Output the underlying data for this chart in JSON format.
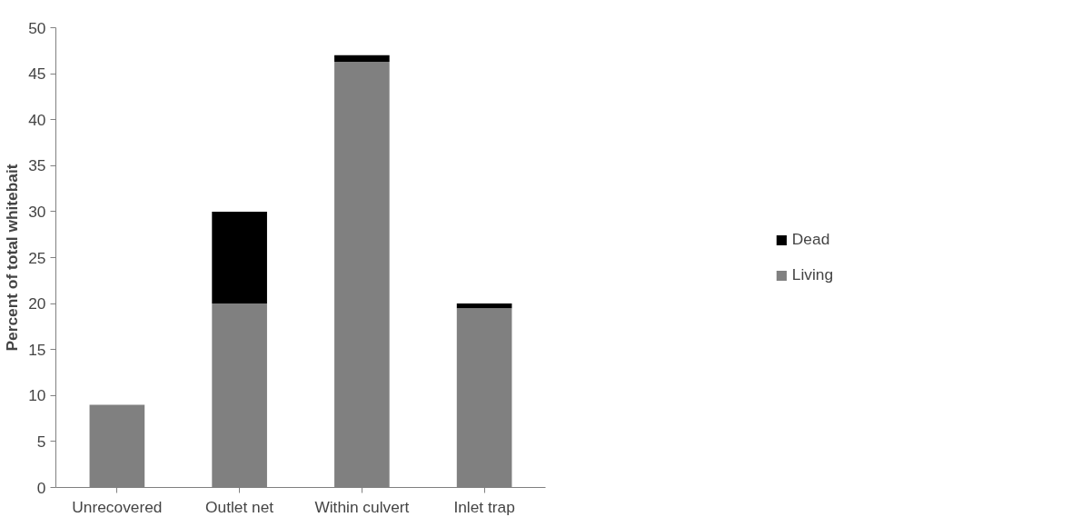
{
  "chart_data": {
    "type": "bar",
    "stacked": true,
    "ylabel": "Percent of total whitebait",
    "categories": [
      "Unrecovered",
      "Outlet net",
      "Within culvert",
      "Inlet trap"
    ],
    "series": [
      {
        "name": "Living",
        "color": "#808080",
        "values": [
          9,
          20,
          46.3,
          19.5
        ]
      },
      {
        "name": "Dead",
        "color": "#000000",
        "values": [
          0,
          10,
          0.7,
          0.5
        ]
      }
    ],
    "ylim": [
      0,
      50
    ],
    "yticks": [
      0,
      5,
      10,
      15,
      20,
      25,
      30,
      35,
      40,
      45,
      50
    ],
    "grid": false,
    "legend": "right"
  }
}
